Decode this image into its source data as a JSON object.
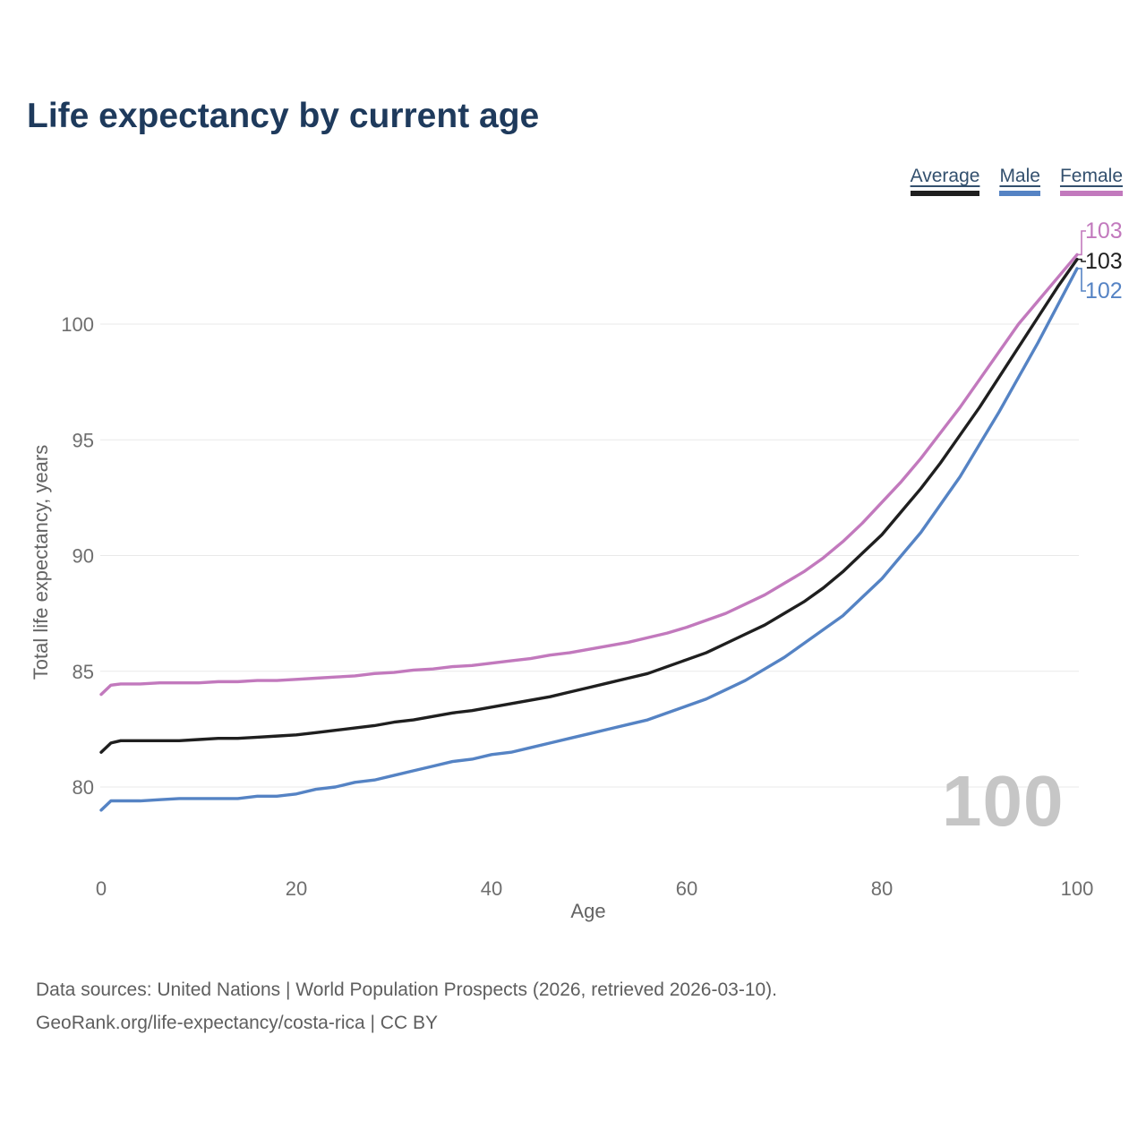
{
  "header": {
    "title": "Life expectancy by current age"
  },
  "legend": {
    "items": [
      {
        "label": "Average",
        "color": "#1f1f1f"
      },
      {
        "label": "Male",
        "color": "#5583c4"
      },
      {
        "label": "Female",
        "color": "#c279bd"
      }
    ]
  },
  "axes": {
    "x_label": "Age",
    "y_label": "Total life expectancy, years"
  },
  "watermark": "100",
  "footer": {
    "line1": "Data sources: United Nations | World Population Prospects (2026, retrieved 2026-03-10).",
    "line2": "GeoRank.org/life-expectancy/costa-rica | CC BY"
  },
  "chart_data": {
    "type": "line",
    "title": "Life expectancy by current age",
    "xlabel": "Age",
    "ylabel": "Total life expectancy, years",
    "x_ticks": [
      0,
      20,
      40,
      60,
      80,
      100
    ],
    "y_ticks": [
      80,
      85,
      90,
      95,
      100
    ],
    "xlim": [
      0,
      100
    ],
    "ylim": [
      78.5,
      103.5
    ],
    "grid": "horizontal",
    "legend_position": "top-right",
    "x": [
      0,
      1,
      2,
      4,
      6,
      8,
      10,
      12,
      14,
      16,
      18,
      20,
      22,
      24,
      26,
      28,
      30,
      32,
      34,
      36,
      38,
      40,
      42,
      44,
      46,
      48,
      50,
      52,
      54,
      56,
      58,
      60,
      62,
      64,
      66,
      68,
      70,
      72,
      74,
      76,
      78,
      80,
      82,
      84,
      86,
      88,
      90,
      92,
      94,
      96,
      98,
      100
    ],
    "series": [
      {
        "name": "Average",
        "color": "#1f1f1f",
        "end_label": "103",
        "values": [
          81.5,
          81.9,
          82.0,
          82.0,
          82.0,
          82.0,
          82.05,
          82.1,
          82.1,
          82.15,
          82.2,
          82.25,
          82.35,
          82.45,
          82.55,
          82.65,
          82.8,
          82.9,
          83.05,
          83.2,
          83.3,
          83.45,
          83.6,
          83.75,
          83.9,
          84.1,
          84.3,
          84.5,
          84.7,
          84.9,
          85.2,
          85.5,
          85.8,
          86.2,
          86.6,
          87.0,
          87.5,
          88.0,
          88.6,
          89.3,
          90.1,
          90.9,
          91.9,
          92.9,
          94.0,
          95.2,
          96.4,
          97.7,
          99.0,
          100.3,
          101.6,
          102.8
        ]
      },
      {
        "name": "Male",
        "color": "#5583c4",
        "end_label": "102",
        "values": [
          79.0,
          79.4,
          79.4,
          79.4,
          79.45,
          79.5,
          79.5,
          79.5,
          79.5,
          79.6,
          79.6,
          79.7,
          79.9,
          80.0,
          80.2,
          80.3,
          80.5,
          80.7,
          80.9,
          81.1,
          81.2,
          81.4,
          81.5,
          81.7,
          81.9,
          82.1,
          82.3,
          82.5,
          82.7,
          82.9,
          83.2,
          83.5,
          83.8,
          84.2,
          84.6,
          85.1,
          85.6,
          86.2,
          86.8,
          87.4,
          88.2,
          89.0,
          90.0,
          91.0,
          92.2,
          93.4,
          94.8,
          96.2,
          97.7,
          99.2,
          100.8,
          102.4
        ]
      },
      {
        "name": "Female",
        "color": "#c279bd",
        "end_label": "103",
        "values": [
          84.0,
          84.4,
          84.45,
          84.45,
          84.5,
          84.5,
          84.5,
          84.55,
          84.55,
          84.6,
          84.6,
          84.65,
          84.7,
          84.75,
          84.8,
          84.9,
          84.95,
          85.05,
          85.1,
          85.2,
          85.25,
          85.35,
          85.45,
          85.55,
          85.7,
          85.8,
          85.95,
          86.1,
          86.25,
          86.45,
          86.65,
          86.9,
          87.2,
          87.5,
          87.9,
          88.3,
          88.8,
          89.3,
          89.9,
          90.6,
          91.4,
          92.3,
          93.2,
          94.2,
          95.3,
          96.4,
          97.6,
          98.8,
          100.0,
          101.0,
          102.0,
          103.0
        ]
      }
    ]
  }
}
